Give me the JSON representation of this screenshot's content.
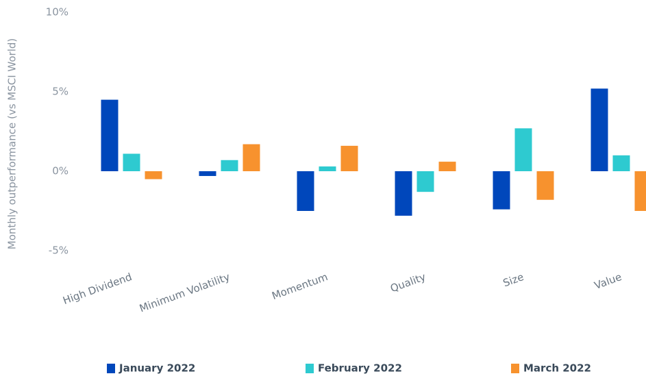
{
  "chart_data": {
    "type": "bar",
    "y_label": "Monthly outperformance (vs MSCI World)",
    "categories": [
      "High Dividend",
      "Minimum Volatility",
      "Momentum",
      "Quality",
      "Size",
      "Value"
    ],
    "series": [
      {
        "name": "January 2022",
        "color": "#0047bb",
        "values": [
          4.5,
          -0.3,
          -2.5,
          -2.8,
          -2.4,
          5.2
        ]
      },
      {
        "name": "February 2022",
        "color": "#2ecad0",
        "values": [
          1.1,
          0.7,
          0.3,
          -1.3,
          2.7,
          1.0
        ]
      },
      {
        "name": "March 2022",
        "color": "#f7922e",
        "values": [
          -0.5,
          1.7,
          1.6,
          0.6,
          -1.8,
          -2.5
        ]
      }
    ],
    "ylim": [
      -5,
      10
    ],
    "yticks": [
      {
        "value": -5,
        "label": "-5%"
      },
      {
        "value": 0,
        "label": "0%"
      },
      {
        "value": 5,
        "label": "5%"
      },
      {
        "value": 10,
        "label": "10%"
      }
    ],
    "grid": false,
    "legend": "bottom"
  }
}
